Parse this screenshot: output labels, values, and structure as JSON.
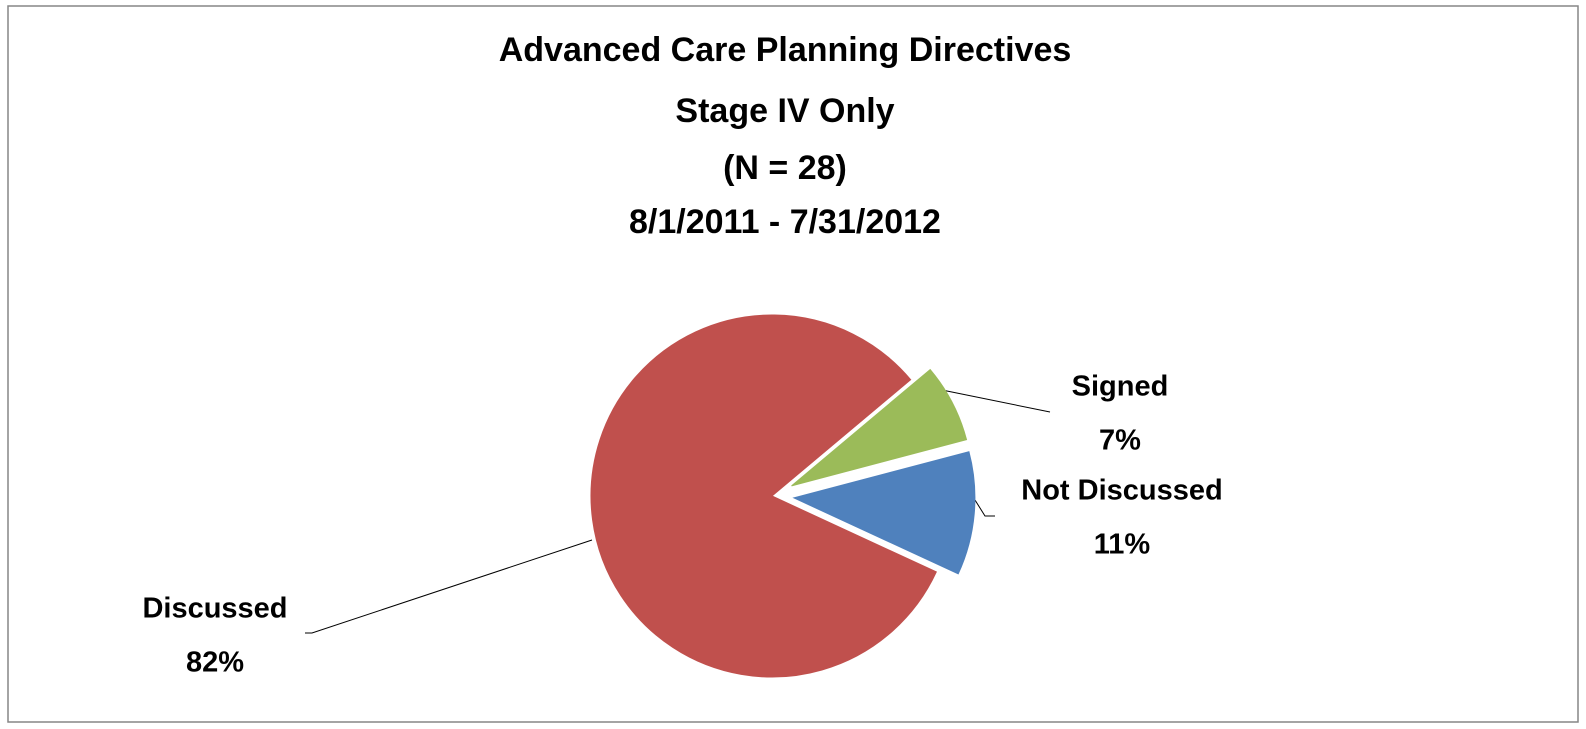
{
  "chart_data": {
    "type": "pie",
    "title": [
      "Advanced Care Planning Directives",
      "Stage IV Only",
      "(N = 28)",
      "8/1/2011 - 7/31/2012"
    ],
    "categories": [
      "Signed",
      "Not Discussed",
      "Discussed"
    ],
    "values": [
      7,
      11,
      82
    ],
    "value_labels": [
      "7%",
      "11%",
      "82%"
    ],
    "colors": [
      "#9bbb59",
      "#4f81bd",
      "#c0504d"
    ]
  }
}
